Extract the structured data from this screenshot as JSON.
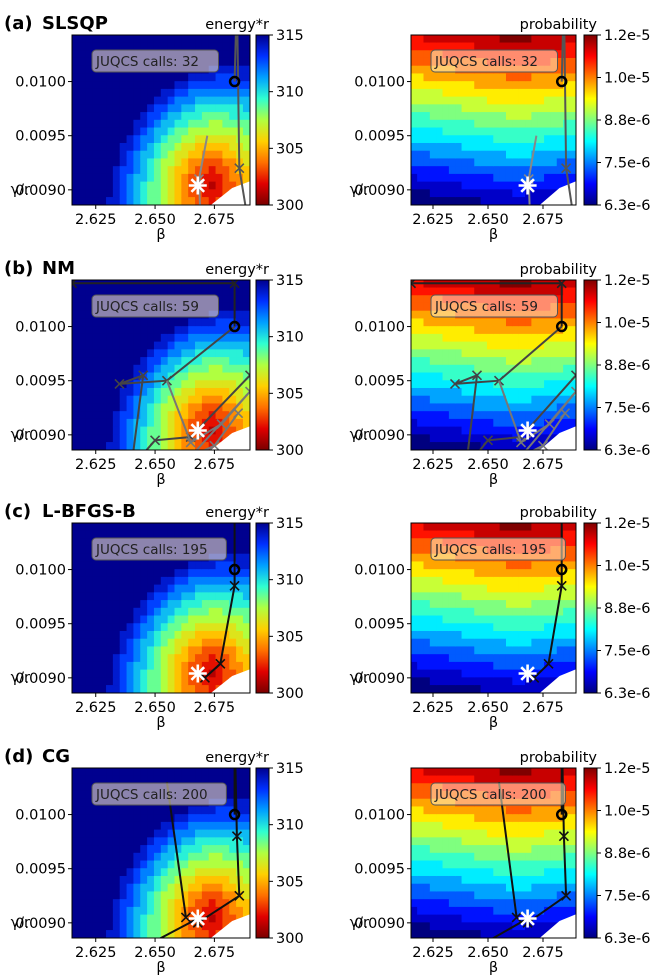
{
  "chart_data": [
    {
      "type": "contour",
      "panel": "(a)",
      "method": "SLSQP",
      "annotation": "JUQCS calls: 32",
      "metrics": [
        {
          "colorbar_label": "energy*r",
          "colorbar_ticks": [
            "300",
            "305",
            "310",
            "315"
          ],
          "vmin": 300,
          "vmax": 315
        },
        {
          "colorbar_label": "probability",
          "colorbar_ticks": [
            "6.3e-6",
            "7.5e-6",
            "8.8e-6",
            "1.0e-5",
            "1.2e-5"
          ],
          "vmin": 6.3e-06,
          "vmax": 1.2e-05
        }
      ],
      "xlabel": "β",
      "ylabel": "γ/r",
      "xticks": [
        "2.625",
        "2.650",
        "2.675"
      ],
      "yticks": [
        "0.0090",
        "0.0095",
        "0.0100"
      ],
      "xlim": [
        2.615,
        2.69
      ],
      "ylim": [
        0.00886,
        0.01043
      ],
      "optimum": {
        "x": 2.668,
        "y": 0.00904
      },
      "paths": [
        {
          "color": "#555555",
          "points": [
            [
              2.6835,
              0.01
            ],
            [
              2.6845,
              0.0108
            ],
            [
              2.6855,
              0.0092
            ],
            [
              2.6885,
              0.0088
            ]
          ]
        },
        {
          "color": "#888888",
          "points": [
            [
              2.672,
              0.0095
            ],
            [
              2.6685,
              0.0091
            ],
            [
              2.669,
              0.0088
            ]
          ]
        }
      ],
      "start": {
        "x": 2.6835,
        "y": 0.01
      }
    },
    {
      "type": "contour",
      "panel": "(b)",
      "method": "NM",
      "annotation": "JUQCS calls: 59",
      "metrics": [
        {
          "colorbar_label": "energy*r",
          "colorbar_ticks": [
            "300",
            "305",
            "310",
            "315"
          ],
          "vmin": 300,
          "vmax": 315
        },
        {
          "colorbar_label": "probability",
          "colorbar_ticks": [
            "6.3e-6",
            "7.5e-6",
            "8.8e-6",
            "1.0e-5",
            "1.2e-5"
          ],
          "vmin": 6.3e-06,
          "vmax": 1.2e-05
        }
      ],
      "xlabel": "β",
      "ylabel": "γ/r",
      "xticks": [
        "2.625",
        "2.650",
        "2.675"
      ],
      "yticks": [
        "0.0090",
        "0.0095",
        "0.0100"
      ],
      "xlim": [
        2.615,
        2.69
      ],
      "ylim": [
        0.00886,
        0.01043
      ],
      "optimum": {
        "x": 2.668,
        "y": 0.00904
      },
      "paths": [
        {
          "color": "#222222",
          "points": [
            [
              2.6835,
              0.01
            ],
            [
              2.6835,
              0.0104
            ],
            [
              2.615,
              0.0104
            ]
          ]
        },
        {
          "color": "#444444",
          "points": [
            [
              2.6835,
              0.01
            ],
            [
              2.655,
              0.0095
            ],
            [
              2.635,
              0.00947
            ],
            [
              2.645,
              0.00955
            ],
            [
              2.64,
              0.0087
            ],
            [
              2.65,
              0.00895
            ],
            [
              2.665,
              0.00898
            ],
            [
              2.69,
              0.00955
            ]
          ]
        },
        {
          "color": "#777777",
          "points": [
            [
              2.655,
              0.0095
            ],
            [
              2.665,
              0.00893
            ],
            [
              2.678,
              0.0091
            ],
            [
              2.69,
              0.0094
            ],
            [
              2.665,
              0.0088
            ],
            [
              2.675,
              0.0089
            ],
            [
              2.685,
              0.0092
            ]
          ]
        }
      ],
      "start": {
        "x": 2.6835,
        "y": 0.01
      }
    },
    {
      "type": "contour",
      "panel": "(c)",
      "method": "L-BFGS-B",
      "annotation": "JUQCS calls: 195",
      "metrics": [
        {
          "colorbar_label": "energy*r",
          "colorbar_ticks": [
            "300",
            "305",
            "310",
            "315"
          ],
          "vmin": 300,
          "vmax": 315
        },
        {
          "colorbar_label": "probability",
          "colorbar_ticks": [
            "6.3e-6",
            "7.5e-6",
            "8.8e-6",
            "1.0e-5",
            "1.2e-5"
          ],
          "vmin": 6.3e-06,
          "vmax": 1.2e-05
        }
      ],
      "xlabel": "β",
      "ylabel": "γ/r",
      "xticks": [
        "2.625",
        "2.650",
        "2.675"
      ],
      "yticks": [
        "0.0090",
        "0.0095",
        "0.0100"
      ],
      "xlim": [
        2.615,
        2.69
      ],
      "ylim": [
        0.00886,
        0.01043
      ],
      "optimum": {
        "x": 2.668,
        "y": 0.00904
      },
      "paths": [
        {
          "color": "#111111",
          "points": [
            [
              2.6835,
              0.01
            ],
            [
              2.6835,
              0.0107
            ],
            [
              2.6835,
              0.00985
            ],
            [
              2.6775,
              0.00913
            ],
            [
              2.671,
              0.009
            ]
          ]
        }
      ],
      "start": {
        "x": 2.6835,
        "y": 0.01
      }
    },
    {
      "type": "contour",
      "panel": "(d)",
      "method": "CG",
      "annotation": "JUQCS calls: 200",
      "metrics": [
        {
          "colorbar_label": "energy*r",
          "colorbar_ticks": [
            "300",
            "305",
            "310",
            "315"
          ],
          "vmin": 300,
          "vmax": 315
        },
        {
          "colorbar_label": "probability",
          "colorbar_ticks": [
            "6.3e-6",
            "7.5e-6",
            "8.8e-6",
            "1.0e-5",
            "1.2e-5"
          ],
          "vmin": 6.3e-06,
          "vmax": 1.2e-05
        }
      ],
      "xlabel": "β",
      "ylabel": "γ/r",
      "xticks": [
        "2.625",
        "2.650",
        "2.675"
      ],
      "yticks": [
        "0.0090",
        "0.0095",
        "0.0100"
      ],
      "xlim": [
        2.615,
        2.69
      ],
      "ylim": [
        0.00886,
        0.01043
      ],
      "optimum": {
        "x": 2.668,
        "y": 0.00904
      },
      "paths": [
        {
          "color": "#111111",
          "points": [
            [
              2.6835,
              0.01
            ],
            [
              2.6835,
              0.0108
            ],
            [
              2.6845,
              0.0098
            ],
            [
              2.6855,
              0.00925
            ],
            [
              2.668,
              0.009
            ]
          ]
        },
        {
          "color": "#111111",
          "points": [
            [
              2.655,
              0.0103
            ],
            [
              2.663,
              0.00905
            ]
          ]
        },
        {
          "color": "#111111",
          "points": [
            [
              2.63,
              0.0086
            ],
            [
              2.668,
              0.00904
            ]
          ]
        }
      ],
      "start": {
        "x": 2.6835,
        "y": 0.01
      }
    }
  ],
  "palettes": {
    "jet": [
      "#00007f",
      "#0000ff",
      "#007fff",
      "#00ffff",
      "#7fff7f",
      "#ffff00",
      "#ff7f00",
      "#ff0000",
      "#7f0000"
    ],
    "energy_stops": [
      "#7a0000",
      "#e00000",
      "#ff7000",
      "#ffd000",
      "#b0ff40",
      "#30ffd0",
      "#00a0ff",
      "#0030ff",
      "#00008f"
    ]
  }
}
